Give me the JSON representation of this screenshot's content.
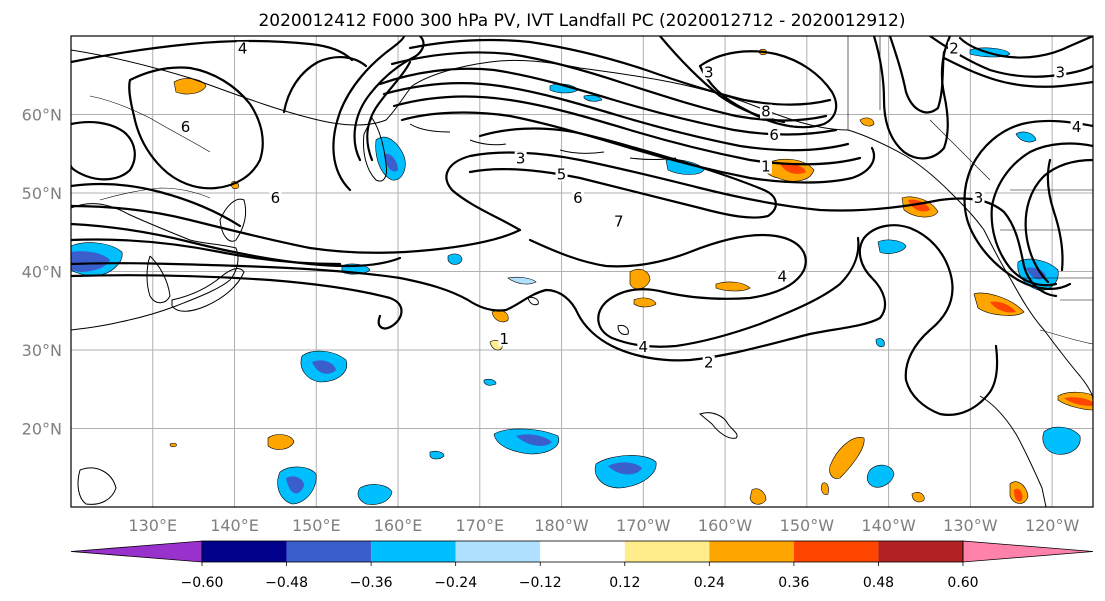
{
  "title": "2020012412 F000 300 hPa PV, IVT Landfall PC (2020012712 - 2020012912)",
  "map": {
    "lon_range": [
      120,
      245
    ],
    "lat_range": [
      10,
      70
    ],
    "lat_ticks": [
      {
        "lat": 20,
        "label": "20°N"
      },
      {
        "lat": 30,
        "label": "30°N"
      },
      {
        "lat": 40,
        "label": "40°N"
      },
      {
        "lat": 50,
        "label": "50°N"
      },
      {
        "lat": 60,
        "label": "60°N"
      }
    ],
    "lon_ticks": [
      {
        "lon": 130,
        "label": "130°E"
      },
      {
        "lon": 140,
        "label": "140°E"
      },
      {
        "lon": 150,
        "label": "150°E"
      },
      {
        "lon": 160,
        "label": "160°E"
      },
      {
        "lon": 170,
        "label": "170°E"
      },
      {
        "lon": 180,
        "label": "180°W"
      },
      {
        "lon": 190,
        "label": "170°W"
      },
      {
        "lon": 200,
        "label": "160°W"
      },
      {
        "lon": 210,
        "label": "150°W"
      },
      {
        "lon": 220,
        "label": "140°W"
      },
      {
        "lon": 230,
        "label": "130°W"
      },
      {
        "lon": 240,
        "label": "120°W"
      }
    ],
    "contour_labels": [
      {
        "text": "1",
        "lon": 173,
        "lat": 31
      },
      {
        "text": "2",
        "lon": 198,
        "lat": 28
      },
      {
        "text": "3",
        "lon": 175,
        "lat": 54
      },
      {
        "text": "3",
        "lon": 198,
        "lat": 65
      },
      {
        "text": "3",
        "lon": 241,
        "lat": 65
      },
      {
        "text": "4",
        "lon": 141,
        "lat": 68
      },
      {
        "text": "4",
        "lon": 190,
        "lat": 30
      },
      {
        "text": "4",
        "lon": 207,
        "lat": 39
      },
      {
        "text": "4",
        "lon": 243,
        "lat": 58
      },
      {
        "text": "5",
        "lon": 180,
        "lat": 52
      },
      {
        "text": "6",
        "lon": 134,
        "lat": 58
      },
      {
        "text": "6",
        "lon": 145,
        "lat": 49
      },
      {
        "text": "6",
        "lon": 182,
        "lat": 49
      },
      {
        "text": "6",
        "lon": 206,
        "lat": 57
      },
      {
        "text": "7",
        "lon": 187,
        "lat": 46
      },
      {
        "text": "8",
        "lon": 205,
        "lat": 60
      },
      {
        "text": "1",
        "lon": 205,
        "lat": 53
      },
      {
        "text": "2",
        "lon": 228,
        "lat": 68
      },
      {
        "text": "3",
        "lon": 231,
        "lat": 49
      }
    ]
  },
  "legend": {
    "ticks": [
      -0.6,
      -0.48,
      -0.36,
      -0.24,
      -0.12,
      0.12,
      0.24,
      0.36,
      0.48,
      0.6
    ],
    "tick_labels": [
      "−0.60",
      "−0.48",
      "−0.36",
      "−0.24",
      "−0.12",
      "0.12",
      "0.24",
      "0.36",
      "0.48",
      "0.60"
    ],
    "colors": [
      "#9932cc",
      "#00008b",
      "#3a5fcd",
      "#00bfff",
      "#b0e2ff",
      "#ffffff",
      "#ffec8b",
      "#ffa500",
      "#ff4500",
      "#b22222",
      "#ff82ab",
      "#ff82ab"
    ]
  }
}
